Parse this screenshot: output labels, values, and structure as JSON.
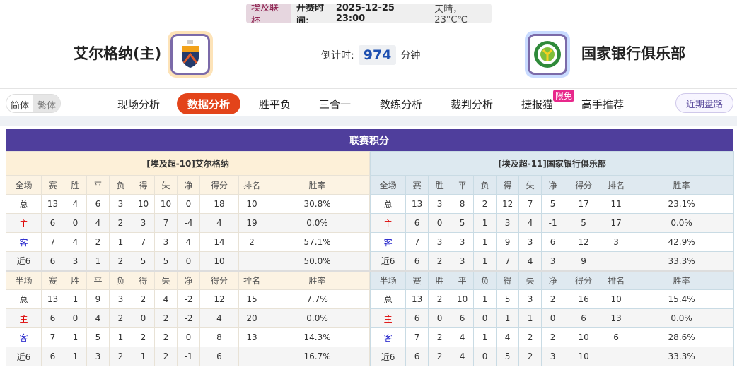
{
  "match": {
    "league": "埃及联杯",
    "kickoff_label": "开赛时间:",
    "kickoff": "2025-12-25 23:00",
    "weather": "天晴，23°C℃"
  },
  "home": {
    "name": "艾尔格纳(主)",
    "logo_color": "#fde3b8"
  },
  "away": {
    "name": "国家银行俱乐部",
    "logo_color": "#c9dbff"
  },
  "countdown": {
    "label": "倒计时:",
    "value": "974",
    "unit": "分钟"
  },
  "lang": {
    "simplified": "简体",
    "traditional": "繁体"
  },
  "nav": {
    "items": [
      "现场分析",
      "数据分析",
      "胜平负",
      "三合一",
      "教练分析",
      "裁判分析",
      "捷报猫",
      "高手推荐"
    ],
    "active": "数据分析",
    "badge": "限免",
    "recent": "近期盘路"
  },
  "standings": {
    "title": "联赛积分",
    "columns_full": [
      "全场",
      "赛",
      "胜",
      "平",
      "负",
      "得",
      "失",
      "净",
      "得分",
      "排名",
      "胜率"
    ],
    "columns_half": [
      "半场",
      "赛",
      "胜",
      "平",
      "负",
      "得",
      "失",
      "净",
      "得分",
      "排名",
      "胜率"
    ],
    "home_table": {
      "title": "[埃及超-10]艾尔格纳",
      "full": [
        [
          "总",
          "13",
          "4",
          "6",
          "3",
          "10",
          "10",
          "0",
          "18",
          "10",
          "30.8%"
        ],
        [
          "主",
          "6",
          "0",
          "4",
          "2",
          "3",
          "7",
          "-4",
          "4",
          "19",
          "0.0%"
        ],
        [
          "客",
          "7",
          "4",
          "2",
          "1",
          "7",
          "3",
          "4",
          "14",
          "2",
          "57.1%"
        ],
        [
          "近6",
          "6",
          "3",
          "1",
          "2",
          "5",
          "5",
          "0",
          "10",
          "",
          "50.0%"
        ]
      ],
      "half": [
        [
          "总",
          "13",
          "1",
          "9",
          "3",
          "2",
          "4",
          "-2",
          "12",
          "15",
          "7.7%"
        ],
        [
          "主",
          "6",
          "0",
          "4",
          "2",
          "0",
          "2",
          "-2",
          "4",
          "20",
          "0.0%"
        ],
        [
          "客",
          "7",
          "1",
          "5",
          "1",
          "2",
          "2",
          "0",
          "8",
          "13",
          "14.3%"
        ],
        [
          "近6",
          "6",
          "1",
          "3",
          "2",
          "1",
          "2",
          "-1",
          "6",
          "",
          "16.7%"
        ]
      ]
    },
    "away_table": {
      "title": "[埃及超-11]国家银行俱乐部",
      "full": [
        [
          "总",
          "13",
          "3",
          "8",
          "2",
          "12",
          "7",
          "5",
          "17",
          "11",
          "23.1%"
        ],
        [
          "主",
          "6",
          "0",
          "5",
          "1",
          "3",
          "4",
          "-1",
          "5",
          "17",
          "0.0%"
        ],
        [
          "客",
          "7",
          "3",
          "3",
          "1",
          "9",
          "3",
          "6",
          "12",
          "3",
          "42.9%"
        ],
        [
          "近6",
          "6",
          "2",
          "3",
          "1",
          "7",
          "4",
          "3",
          "9",
          "",
          "33.3%"
        ]
      ],
      "half": [
        [
          "总",
          "13",
          "2",
          "10",
          "1",
          "5",
          "3",
          "2",
          "16",
          "10",
          "15.4%"
        ],
        [
          "主",
          "6",
          "0",
          "6",
          "0",
          "1",
          "1",
          "0",
          "6",
          "13",
          "0.0%"
        ],
        [
          "客",
          "7",
          "2",
          "4",
          "1",
          "4",
          "2",
          "2",
          "10",
          "6",
          "28.6%"
        ],
        [
          "近6",
          "6",
          "2",
          "4",
          "0",
          "5",
          "2",
          "3",
          "10",
          "",
          "33.3%"
        ]
      ]
    }
  }
}
